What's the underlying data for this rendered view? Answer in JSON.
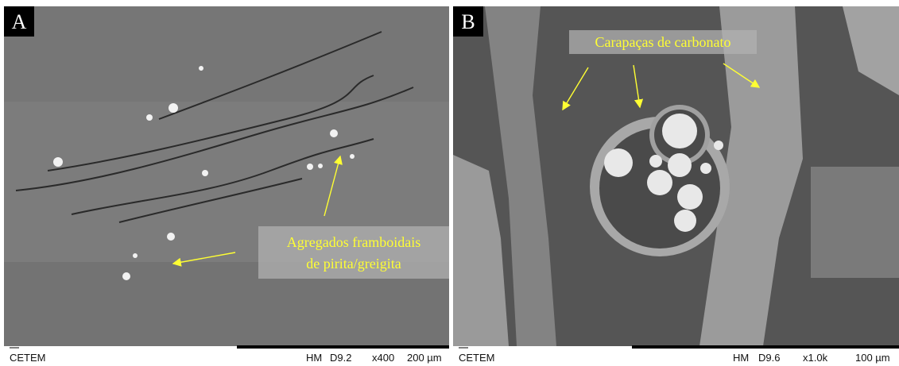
{
  "panels": [
    {
      "label": "A",
      "annotation": {
        "lines": [
          "Agregados framboidais",
          "de pirita/greigita"
        ]
      },
      "footer": {
        "left": "CETEM",
        "right": [
          "HM",
          "D9.2",
          "x400",
          "200 µm"
        ]
      }
    },
    {
      "label": "B",
      "annotation": {
        "lines": [
          "Carapaças de carbonato"
        ]
      },
      "footer": {
        "left": "CETEM",
        "right": [
          "HM",
          "D9.6",
          "x1.0k",
          "100 µm"
        ]
      }
    }
  ]
}
